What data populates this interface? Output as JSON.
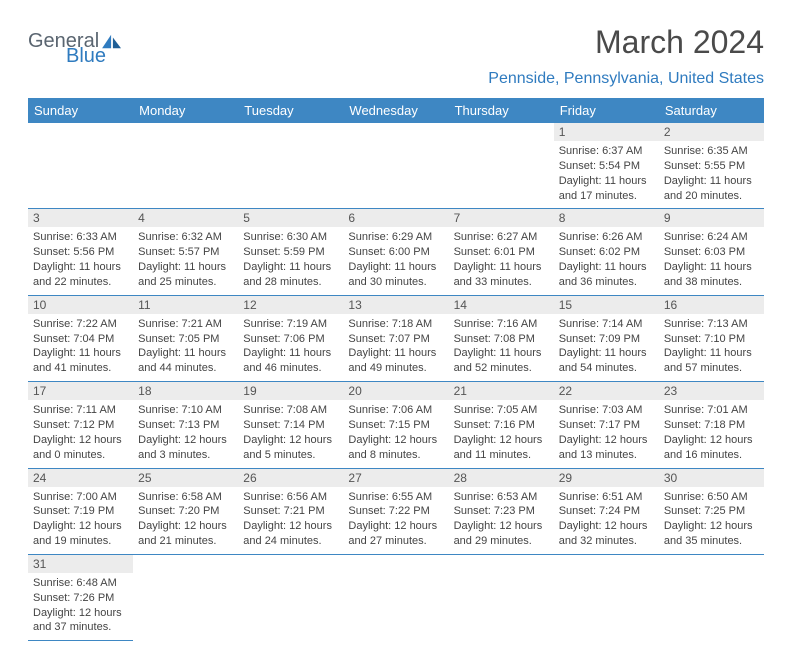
{
  "logo": {
    "word1": "General",
    "word2": "Blue"
  },
  "title": "March 2024",
  "subtitle": "Pennside, Pennsylvania, United States",
  "colors": {
    "header_bg": "#3e87c3",
    "header_text": "#ffffff",
    "daynum_bg": "#ececec",
    "text": "#444444",
    "accent": "#2f7bbf",
    "logo_gray": "#5a6570"
  },
  "dayNames": [
    "Sunday",
    "Monday",
    "Tuesday",
    "Wednesday",
    "Thursday",
    "Friday",
    "Saturday"
  ],
  "grid": [
    [
      null,
      null,
      null,
      null,
      null,
      {
        "n": "1",
        "sr": "6:37 AM",
        "ss": "5:54 PM",
        "dl": "11 hours and 17 minutes."
      },
      {
        "n": "2",
        "sr": "6:35 AM",
        "ss": "5:55 PM",
        "dl": "11 hours and 20 minutes."
      }
    ],
    [
      {
        "n": "3",
        "sr": "6:33 AM",
        "ss": "5:56 PM",
        "dl": "11 hours and 22 minutes."
      },
      {
        "n": "4",
        "sr": "6:32 AM",
        "ss": "5:57 PM",
        "dl": "11 hours and 25 minutes."
      },
      {
        "n": "5",
        "sr": "6:30 AM",
        "ss": "5:59 PM",
        "dl": "11 hours and 28 minutes."
      },
      {
        "n": "6",
        "sr": "6:29 AM",
        "ss": "6:00 PM",
        "dl": "11 hours and 30 minutes."
      },
      {
        "n": "7",
        "sr": "6:27 AM",
        "ss": "6:01 PM",
        "dl": "11 hours and 33 minutes."
      },
      {
        "n": "8",
        "sr": "6:26 AM",
        "ss": "6:02 PM",
        "dl": "11 hours and 36 minutes."
      },
      {
        "n": "9",
        "sr": "6:24 AM",
        "ss": "6:03 PM",
        "dl": "11 hours and 38 minutes."
      }
    ],
    [
      {
        "n": "10",
        "sr": "7:22 AM",
        "ss": "7:04 PM",
        "dl": "11 hours and 41 minutes."
      },
      {
        "n": "11",
        "sr": "7:21 AM",
        "ss": "7:05 PM",
        "dl": "11 hours and 44 minutes."
      },
      {
        "n": "12",
        "sr": "7:19 AM",
        "ss": "7:06 PM",
        "dl": "11 hours and 46 minutes."
      },
      {
        "n": "13",
        "sr": "7:18 AM",
        "ss": "7:07 PM",
        "dl": "11 hours and 49 minutes."
      },
      {
        "n": "14",
        "sr": "7:16 AM",
        "ss": "7:08 PM",
        "dl": "11 hours and 52 minutes."
      },
      {
        "n": "15",
        "sr": "7:14 AM",
        "ss": "7:09 PM",
        "dl": "11 hours and 54 minutes."
      },
      {
        "n": "16",
        "sr": "7:13 AM",
        "ss": "7:10 PM",
        "dl": "11 hours and 57 minutes."
      }
    ],
    [
      {
        "n": "17",
        "sr": "7:11 AM",
        "ss": "7:12 PM",
        "dl": "12 hours and 0 minutes."
      },
      {
        "n": "18",
        "sr": "7:10 AM",
        "ss": "7:13 PM",
        "dl": "12 hours and 3 minutes."
      },
      {
        "n": "19",
        "sr": "7:08 AM",
        "ss": "7:14 PM",
        "dl": "12 hours and 5 minutes."
      },
      {
        "n": "20",
        "sr": "7:06 AM",
        "ss": "7:15 PM",
        "dl": "12 hours and 8 minutes."
      },
      {
        "n": "21",
        "sr": "7:05 AM",
        "ss": "7:16 PM",
        "dl": "12 hours and 11 minutes."
      },
      {
        "n": "22",
        "sr": "7:03 AM",
        "ss": "7:17 PM",
        "dl": "12 hours and 13 minutes."
      },
      {
        "n": "23",
        "sr": "7:01 AM",
        "ss": "7:18 PM",
        "dl": "12 hours and 16 minutes."
      }
    ],
    [
      {
        "n": "24",
        "sr": "7:00 AM",
        "ss": "7:19 PM",
        "dl": "12 hours and 19 minutes."
      },
      {
        "n": "25",
        "sr": "6:58 AM",
        "ss": "7:20 PM",
        "dl": "12 hours and 21 minutes."
      },
      {
        "n": "26",
        "sr": "6:56 AM",
        "ss": "7:21 PM",
        "dl": "12 hours and 24 minutes."
      },
      {
        "n": "27",
        "sr": "6:55 AM",
        "ss": "7:22 PM",
        "dl": "12 hours and 27 minutes."
      },
      {
        "n": "28",
        "sr": "6:53 AM",
        "ss": "7:23 PM",
        "dl": "12 hours and 29 minutes."
      },
      {
        "n": "29",
        "sr": "6:51 AM",
        "ss": "7:24 PM",
        "dl": "12 hours and 32 minutes."
      },
      {
        "n": "30",
        "sr": "6:50 AM",
        "ss": "7:25 PM",
        "dl": "12 hours and 35 minutes."
      }
    ],
    [
      {
        "n": "31",
        "sr": "6:48 AM",
        "ss": "7:26 PM",
        "dl": "12 hours and 37 minutes."
      },
      null,
      null,
      null,
      null,
      null,
      null
    ]
  ],
  "labels": {
    "sunrise": "Sunrise:",
    "sunset": "Sunset:",
    "daylight": "Daylight:"
  }
}
